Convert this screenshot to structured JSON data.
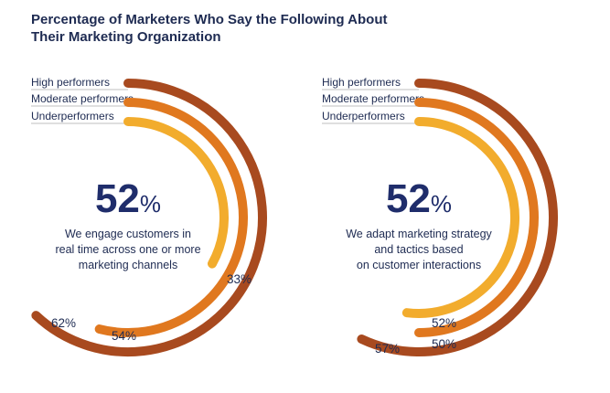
{
  "title": "Percentage of Marketers Who Say the Following About Their Marketing Organization",
  "colors": {
    "high": "#a84a1f",
    "moderate": "#e0781f",
    "under": "#f2ac2d",
    "text": "#1e2b52",
    "rule": "#bfbfbf"
  },
  "chart_data": [
    {
      "type": "radial-bar",
      "headline": {
        "value": "52",
        "unit": "%"
      },
      "description": [
        "We engage customers in",
        "real time across one or more",
        "marketing channels"
      ],
      "series": [
        {
          "name": "High performers",
          "value": 62,
          "label": "62%"
        },
        {
          "name": "Moderate performers",
          "value": 54,
          "label": "54%"
        },
        {
          "name": "Underperformers",
          "value": 33,
          "label": "33%"
        }
      ]
    },
    {
      "type": "radial-bar",
      "headline": {
        "value": "52",
        "unit": "%"
      },
      "description": [
        "We adapt marketing strategy",
        "and tactics based",
        "on customer interactions"
      ],
      "series": [
        {
          "name": "High performers",
          "value": 57,
          "label": "57%"
        },
        {
          "name": "Moderate performers",
          "value": 50,
          "label": "50%"
        },
        {
          "name": "Underperformers",
          "value": 52,
          "label": "52%"
        }
      ]
    }
  ]
}
